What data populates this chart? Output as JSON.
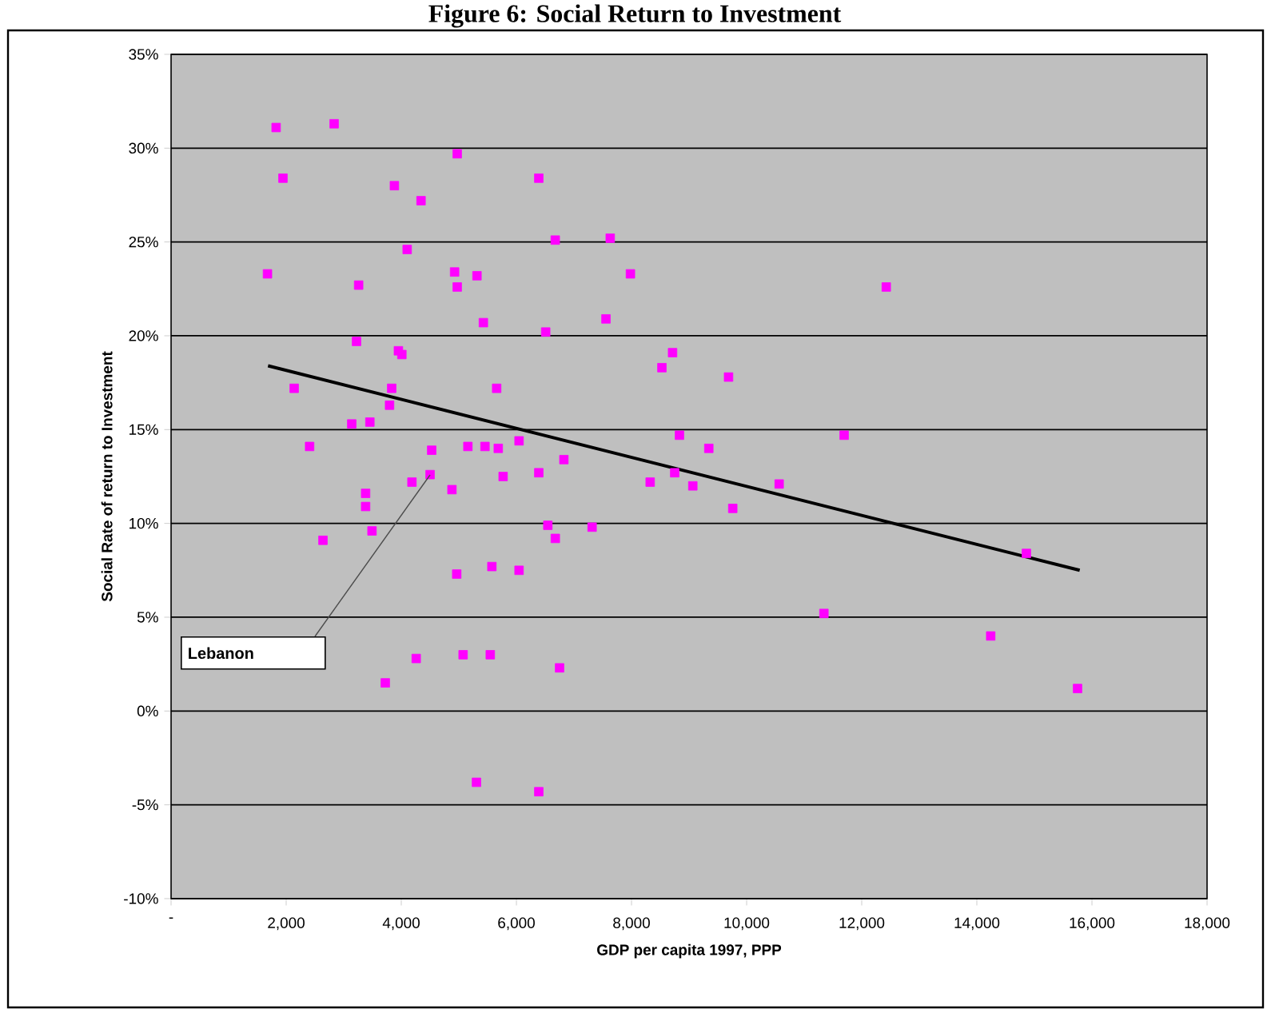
{
  "chart_data": {
    "type": "scatter",
    "title": "Figure 6: Social Return to Investment",
    "xlabel": "GDP per capita 1997, PPP",
    "ylabel": "Social Rate of return to Investment",
    "xlim": [
      0,
      18000
    ],
    "ylim": [
      -10,
      35
    ],
    "xticks": [
      {
        "value": 0,
        "label": "-"
      },
      {
        "value": 2000,
        "label": "2,000"
      },
      {
        "value": 4000,
        "label": "4,000"
      },
      {
        "value": 6000,
        "label": "6,000"
      },
      {
        "value": 8000,
        "label": "8,000"
      },
      {
        "value": 10000,
        "label": "10,000"
      },
      {
        "value": 12000,
        "label": "12,000"
      },
      {
        "value": 14000,
        "label": "14,000"
      },
      {
        "value": 16000,
        "label": "16,000"
      },
      {
        "value": 18000,
        "label": "18,000"
      }
    ],
    "yticks": [
      {
        "value": -10,
        "label": "-10%"
      },
      {
        "value": -5,
        "label": "-5%"
      },
      {
        "value": 0,
        "label": "0%"
      },
      {
        "value": 5,
        "label": "5%"
      },
      {
        "value": 10,
        "label": "10%"
      },
      {
        "value": 15,
        "label": "15%"
      },
      {
        "value": 20,
        "label": "20%"
      },
      {
        "value": 25,
        "label": "25%"
      },
      {
        "value": 30,
        "label": "30%"
      },
      {
        "value": 35,
        "label": "35%"
      }
    ],
    "grid": "y",
    "marker": "square",
    "series": [
      {
        "color": "#ff00ff",
        "x": [
          1825,
          2833,
          4972,
          1944,
          3880,
          4343,
          6389,
          6675,
          4102,
          1675,
          3259,
          4926,
          4972,
          5315,
          5426,
          6509,
          3222,
          3950,
          4010,
          2139,
          3833,
          3796,
          5657,
          3139,
          3454,
          7630,
          7981,
          12426,
          7556,
          8713,
          8528,
          9686,
          8833,
          11694,
          9343,
          2407,
          4528,
          5157,
          5454,
          5685,
          6046,
          6825,
          4185,
          4500,
          4880,
          5769,
          6389,
          3380,
          3380,
          3491,
          2639,
          6546,
          6676,
          4963,
          5574,
          6046,
          4259,
          5074,
          5546,
          3722,
          6750,
          5306,
          6389,
          8324,
          8750,
          9065,
          10565,
          9759,
          7315,
          11343,
          14241,
          14861,
          15750
        ],
        "values": [
          31.1,
          31.3,
          29.7,
          28.4,
          28.0,
          27.2,
          28.4,
          25.1,
          24.6,
          23.3,
          22.7,
          23.4,
          22.6,
          23.2,
          20.7,
          20.2,
          19.7,
          19.2,
          19.0,
          17.2,
          17.2,
          16.3,
          17.2,
          15.3,
          15.4,
          25.2,
          23.3,
          22.6,
          20.9,
          19.1,
          18.3,
          17.8,
          14.7,
          14.7,
          14.0,
          14.1,
          13.9,
          14.1,
          14.1,
          14.0,
          14.4,
          13.4,
          12.2,
          12.6,
          11.8,
          12.5,
          12.7,
          11.6,
          10.9,
          9.6,
          9.1,
          9.9,
          9.2,
          7.3,
          7.7,
          7.5,
          2.8,
          3.0,
          3.0,
          1.5,
          2.3,
          -3.8,
          -4.3,
          12.2,
          12.7,
          12.0,
          12.1,
          10.8,
          9.8,
          5.2,
          4.0,
          8.4,
          1.2
        ]
      },
      {
        "type": "line",
        "color": "#000000",
        "marker": "none",
        "x": [
          1685,
          15787
        ],
        "values": [
          18.4,
          7.5
        ]
      }
    ],
    "annotations": [
      "Lebanon"
    ]
  }
}
